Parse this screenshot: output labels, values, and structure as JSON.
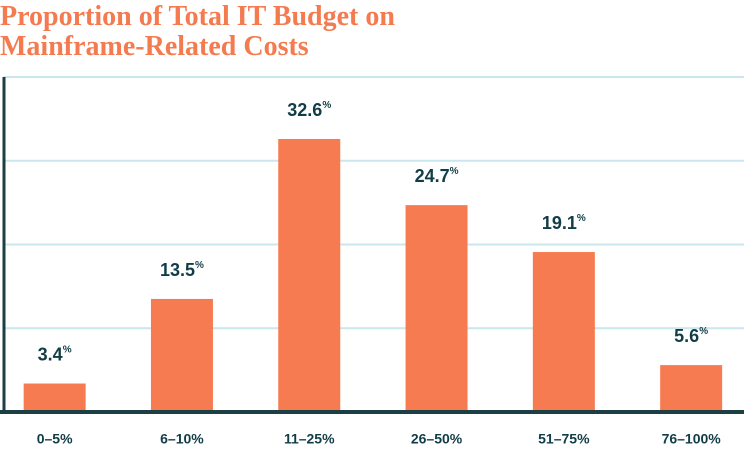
{
  "chart_data": {
    "type": "bar",
    "title": "Proportion of Total IT Budget on Mainframe-Related Costs",
    "categories": [
      "0–5%",
      "6–10%",
      "11–25%",
      "26–50%",
      "51–75%",
      "76–100%"
    ],
    "values": [
      3.4,
      13.5,
      32.6,
      24.7,
      19.1,
      5.6
    ],
    "value_labels": [
      "3.4%",
      "13.5%",
      "32.6%",
      "24.7%",
      "19.1%",
      "5.6%"
    ],
    "color": "#f77b50",
    "ylim": [
      0,
      40
    ],
    "yticks": [
      0,
      10,
      20,
      30,
      40
    ],
    "grid": true
  }
}
